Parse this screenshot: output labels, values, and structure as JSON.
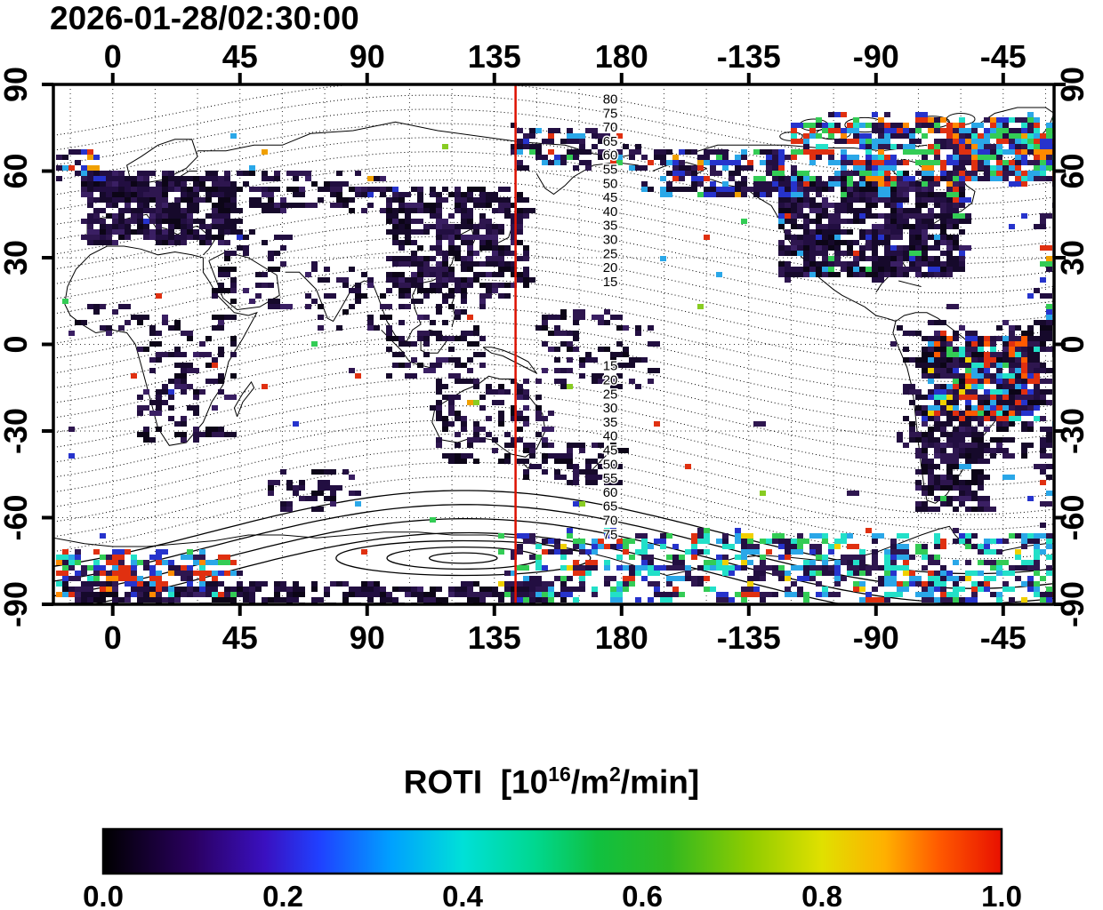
{
  "chart_data": {
    "type": "heatmap",
    "title": "2026-01-28/02:30:00",
    "map": {
      "lon_range": [
        -21,
        333
      ],
      "lat_range": [
        -90,
        90
      ],
      "grid_lon_step": 15,
      "grid_lat_step": 30
    },
    "x_ticks": [
      {
        "label": "0",
        "lon": 0
      },
      {
        "label": "45",
        "lon": 45
      },
      {
        "label": "90",
        "lon": 90
      },
      {
        "label": "135",
        "lon": 135
      },
      {
        "label": "180",
        "lon": 180
      },
      {
        "label": "-135",
        "lon": 225
      },
      {
        "label": "-90",
        "lon": 270
      },
      {
        "label": "-45",
        "lon": 315
      }
    ],
    "y_ticks": [
      {
        "label": "90",
        "lat": 90
      },
      {
        "label": "60",
        "lat": 60
      },
      {
        "label": "30",
        "lat": 30
      },
      {
        "label": "0",
        "lat": 0
      },
      {
        "label": "-30",
        "lat": -30
      },
      {
        "label": "-60",
        "lat": -60
      },
      {
        "label": "-90",
        "lat": -90
      }
    ],
    "red_meridian_lon": 142.5,
    "red_meridian_color": "#dd1100",
    "contour_labels": {
      "lon": 176,
      "north": [
        80,
        75,
        70,
        65,
        60,
        55,
        50,
        45,
        40,
        35,
        30,
        25,
        20,
        15
      ],
      "south": [
        15,
        20,
        25,
        30,
        35,
        40,
        45,
        50,
        55,
        60,
        65,
        70,
        75
      ]
    },
    "colorbar": {
      "title_parts": {
        "p1": "ROTI  [10",
        "sup1": "16",
        "p2": "/m",
        "sup2": "2",
        "p3": "/min]"
      },
      "ticks": [
        "0.0",
        "0.2",
        "0.4",
        "0.6",
        "0.8",
        "1.0"
      ],
      "range": [
        0,
        1
      ],
      "stops": [
        [
          0,
          "#000000"
        ],
        [
          0.1,
          "#2a0060"
        ],
        [
          0.18,
          "#3a10c0"
        ],
        [
          0.24,
          "#2040ff"
        ],
        [
          0.32,
          "#00a0ff"
        ],
        [
          0.4,
          "#00e0d8"
        ],
        [
          0.48,
          "#00d890"
        ],
        [
          0.55,
          "#10c040"
        ],
        [
          0.63,
          "#30b820"
        ],
        [
          0.72,
          "#90cc00"
        ],
        [
          0.8,
          "#e0e000"
        ],
        [
          0.87,
          "#ffb000"
        ],
        [
          0.93,
          "#ff5a00"
        ],
        [
          1,
          "#e81000"
        ]
      ]
    },
    "palettes": {
      "dark": [
        [
          "#16092b",
          5
        ],
        [
          "#220e41",
          4
        ],
        [
          "#2e164f",
          3
        ],
        [
          "#0c0517",
          3
        ],
        [
          "#3a1f63",
          1
        ]
      ],
      "darkblue": [
        [
          "#16092b",
          5
        ],
        [
          "#220e41",
          4
        ],
        [
          "#2e164f",
          3
        ],
        [
          "#0c0517",
          3
        ],
        [
          "#3a1f63",
          1.2
        ],
        [
          "#2633cc",
          0.6
        ],
        [
          "#2aa7e8",
          0.3
        ],
        [
          "#33cc55",
          0.12
        ],
        [
          "#e03010",
          0.12
        ]
      ],
      "mixed": [
        [
          "#220e41",
          4
        ],
        [
          "#2e164f",
          2
        ],
        [
          "#16092b",
          2
        ],
        [
          "#2633cc",
          1.5
        ],
        [
          "#2aa7e8",
          1
        ],
        [
          "#33cc55",
          0.7
        ],
        [
          "#e03010",
          0.7
        ],
        [
          "#f0a000",
          0.4
        ]
      ],
      "hot": [
        [
          "#e03010",
          3
        ],
        [
          "#ff5a00",
          1.5
        ],
        [
          "#f0d000",
          0.7
        ],
        [
          "#2aa7e8",
          1.6
        ],
        [
          "#22e0c8",
          1.1
        ],
        [
          "#33cc55",
          1
        ],
        [
          "#2633cc",
          1
        ],
        [
          "#2e164f",
          2
        ]
      ],
      "aurora": [
        [
          "#e03010",
          2.5
        ],
        [
          "#ff8a00",
          1
        ],
        [
          "#33cc55",
          1.5
        ],
        [
          "#2aa7e8",
          1.5
        ],
        [
          "#22e0c8",
          1
        ],
        [
          "#2633cc",
          1.2
        ],
        [
          "#2e164f",
          2
        ],
        [
          "#220e41",
          1.5
        ]
      ],
      "aurora_south": [
        [
          "#2aa7e8",
          2.5
        ],
        [
          "#22e0c8",
          2
        ],
        [
          "#33cc55",
          1.8
        ],
        [
          "#2633cc",
          1.5
        ],
        [
          "#e03010",
          1
        ],
        [
          "#f0d000",
          0.5
        ],
        [
          "#2e164f",
          2.5
        ],
        [
          "#220e41",
          2
        ]
      ],
      "singles": [
        [
          "#2633cc",
          1
        ],
        [
          "#2aa7e8",
          1
        ],
        [
          "#33cc55",
          1
        ],
        [
          "#e03010",
          1
        ],
        [
          "#88cc22",
          0.6
        ],
        [
          "#f0a000",
          0.6
        ],
        [
          "#2e164f",
          1.5
        ]
      ]
    },
    "data_regions": [
      {
        "name": "europe",
        "lon": [
          -12,
          42
        ],
        "lat": [
          36,
          60
        ],
        "n": 430,
        "palette": "dark"
      },
      {
        "name": "russia",
        "lon": [
          42,
          96
        ],
        "lat": [
          46,
          62
        ],
        "n": 80,
        "palette": "dark"
      },
      {
        "name": "east-asia",
        "lon": [
          96,
          146
        ],
        "lat": [
          18,
          55
        ],
        "n": 400,
        "palette": "dark"
      },
      {
        "name": "se-asia",
        "lon": [
          94,
          130
        ],
        "lat": [
          -10,
          18
        ],
        "n": 80,
        "palette": "dark"
      },
      {
        "name": "india",
        "lon": [
          68,
          92
        ],
        "lat": [
          6,
          30
        ],
        "n": 30,
        "palette": "dark"
      },
      {
        "name": "middle-east",
        "lon": [
          34,
          60
        ],
        "lat": [
          14,
          40
        ],
        "n": 45,
        "palette": "dark"
      },
      {
        "name": "africa",
        "lon": [
          8,
          42
        ],
        "lat": [
          -33,
          12
        ],
        "n": 110,
        "palette": "dark"
      },
      {
        "name": "west-africa",
        "lon": [
          -17,
          8
        ],
        "lat": [
          4,
          15
        ],
        "n": 20,
        "palette": "dark"
      },
      {
        "name": "australia",
        "lon": [
          113,
          154
        ],
        "lat": [
          -40,
          -11
        ],
        "n": 110,
        "palette": "dark"
      },
      {
        "name": "tasman-nz",
        "lon": [
          144,
          179
        ],
        "lat": [
          -48,
          -33
        ],
        "n": 55,
        "palette": "dark"
      },
      {
        "name": "west-pacific",
        "lon": [
          150,
          190
        ],
        "lat": [
          -14,
          12
        ],
        "n": 80,
        "palette": "dark"
      },
      {
        "name": "s-indian-ocean",
        "lon": [
          55,
          85
        ],
        "lat": [
          -56,
          -42
        ],
        "n": 35,
        "palette": "dark"
      },
      {
        "name": "north-america",
        "lon": [
          234,
          300
        ],
        "lat": [
          24,
          60
        ],
        "n": 780,
        "palette": "darkblue"
      },
      {
        "name": "alaska-bering",
        "lon": [
          186,
          240
        ],
        "lat": [
          52,
          68
        ],
        "n": 150,
        "palette": "mixed"
      },
      {
        "name": "auroral-north-america",
        "lon": [
          240,
          333
        ],
        "lat": [
          56,
          80
        ],
        "n": 430,
        "palette": "aurora"
      },
      {
        "name": "greenland-aurora",
        "lon": [
          295,
          333
        ],
        "lat": [
          58,
          76
        ],
        "n": 220,
        "palette": "aurora"
      },
      {
        "name": "siberia-arctic",
        "lon": [
          140,
          186
        ],
        "lat": [
          62,
          76
        ],
        "n": 80,
        "palette": "mixed"
      },
      {
        "name": "iceland-north-atlantic",
        "lon": [
          -21,
          -6
        ],
        "lat": [
          58,
          68
        ],
        "n": 30,
        "palette": "mixed"
      },
      {
        "name": "south-america-anomaly",
        "lon": [
          286,
          326
        ],
        "lat": [
          -26,
          4
        ],
        "n": 430,
        "palette": "hot"
      },
      {
        "name": "south-america",
        "lon": [
          278,
          330
        ],
        "lat": [
          -38,
          8
        ],
        "n": 260,
        "palette": "dark"
      },
      {
        "name": "patagonia",
        "lon": [
          284,
          306
        ],
        "lat": [
          -57,
          -30
        ],
        "n": 170,
        "palette": "dark"
      },
      {
        "name": "east-edge",
        "lon": [
          324,
          333
        ],
        "lat": [
          -62,
          58
        ],
        "n": 40,
        "palette": "mixed"
      },
      {
        "name": "antarctic-left-aurora",
        "lon": [
          -21,
          42
        ],
        "lat": [
          -87,
          -71
        ],
        "n": 190,
        "palette": "aurora"
      },
      {
        "name": "antarctic-band-dark",
        "lon": [
          -21,
          160
        ],
        "lat": [
          -90,
          -82
        ],
        "n": 280,
        "palette": "dark"
      },
      {
        "name": "antarctic-right-aurora",
        "lon": [
          136,
          333
        ],
        "lat": [
          -88,
          -64
        ],
        "n": 650,
        "palette": "aurora_south"
      },
      {
        "name": "ocean-singles",
        "lon": [
          -21,
          333
        ],
        "lat": [
          -75,
          75
        ],
        "n": 70,
        "palette": "singles"
      }
    ]
  }
}
